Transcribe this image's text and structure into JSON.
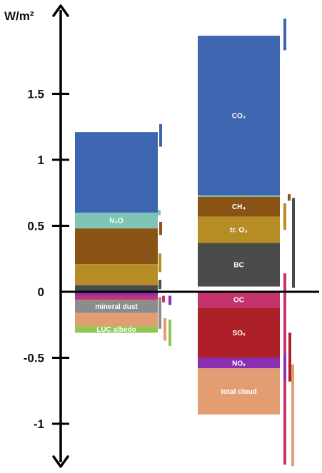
{
  "chart_data": {
    "type": "bar",
    "title": "",
    "ylabel": "W/m²",
    "xlabel": "",
    "ylim": [
      -1.3,
      2.05
    ],
    "y_ticks": [
      {
        "value": 1.5,
        "label": "1.5"
      },
      {
        "value": 1,
        "label": "1"
      },
      {
        "value": 0.5,
        "label": "0.5"
      },
      {
        "value": 0,
        "label": "0"
      },
      {
        "value": -0.5,
        "label": "-0.5"
      },
      {
        "value": -1,
        "label": "-1"
      }
    ],
    "grid": false,
    "legend": "none",
    "stacks": [
      {
        "segments": [
          {
            "label": "",
            "from": 0.6,
            "to": 1.21,
            "color": "#3e66b0"
          },
          {
            "label": "N₂O",
            "from": 0.48,
            "to": 0.6,
            "color": "#7fc4b4"
          },
          {
            "label": "",
            "from": 0.21,
            "to": 0.48,
            "color": "#8a5416"
          },
          {
            "label": "",
            "from": 0.05,
            "to": 0.21,
            "color": "#b58d24"
          },
          {
            "label": "",
            "from": 0.0,
            "to": 0.05,
            "color": "#4b4b4b"
          },
          {
            "label": "",
            "from": -0.03,
            "to": 0.0,
            "color": "#8a2fb4"
          },
          {
            "label": "",
            "from": -0.06,
            "to": -0.03,
            "color": "#c5336e"
          },
          {
            "label": "mineral dust",
            "from": -0.16,
            "to": -0.06,
            "color": "#8c8c8c"
          },
          {
            "label": "",
            "from": -0.26,
            "to": -0.16,
            "color": "#e29e72"
          },
          {
            "label": "LUC albedo",
            "from": -0.31,
            "to": -0.26,
            "color": "#94c451"
          }
        ],
        "ranges": [
          {
            "low": 1.1,
            "high": 1.27,
            "color": "#3e66b0"
          },
          {
            "low": 0.58,
            "high": 0.62,
            "color": "#7fc4b4"
          },
          {
            "low": 0.43,
            "high": 0.53,
            "color": "#8a5416"
          },
          {
            "low": 0.15,
            "high": 0.29,
            "color": "#b58d24"
          },
          {
            "low": 0.02,
            "high": 0.09,
            "color": "#4b4b4b"
          },
          {
            "low": -0.08,
            "high": -0.03,
            "color": "#c5336e"
          },
          {
            "low": -0.1,
            "high": -0.03,
            "color": "#8a2fb4"
          },
          {
            "low": -0.28,
            "high": -0.04,
            "color": "#8c8c8c"
          },
          {
            "low": -0.37,
            "high": -0.2,
            "color": "#e29e72"
          },
          {
            "low": -0.41,
            "high": -0.21,
            "color": "#94c451"
          }
        ]
      },
      {
        "segments": [
          {
            "label": "CO₂",
            "from": 0.73,
            "to": 1.94,
            "color": "#3e66b0"
          },
          {
            "label": "",
            "from": 0.72,
            "to": 0.73,
            "color": "#7fc4b4"
          },
          {
            "label": "CH₄",
            "from": 0.57,
            "to": 0.72,
            "color": "#8a5416"
          },
          {
            "label": "tr. O₃",
            "from": 0.37,
            "to": 0.57,
            "color": "#b58d24"
          },
          {
            "label": "BC",
            "from": 0.04,
            "to": 0.37,
            "color": "#4b4b4b"
          },
          {
            "label": "OC",
            "from": -0.12,
            "to": 0.0,
            "color": "#c5336e"
          },
          {
            "label": "SOₓ",
            "from": -0.5,
            "to": -0.12,
            "color": "#ad1f29"
          },
          {
            "label": "NOₓ",
            "from": -0.58,
            "to": -0.5,
            "color": "#8a2fb4"
          },
          {
            "label": "total cloud",
            "from": -0.93,
            "to": -0.58,
            "color": "#e29e72"
          }
        ],
        "ranges": [
          {
            "low": 1.83,
            "high": 2.07,
            "color": "#3e66b0"
          },
          {
            "low": 0.69,
            "high": 0.74,
            "color": "#8a5416"
          },
          {
            "low": 0.47,
            "high": 0.67,
            "color": "#b58d24"
          },
          {
            "low": 0.03,
            "high": 0.71,
            "color": "#4b4b4b"
          },
          {
            "low": -1.31,
            "high": 0.14,
            "color": "#c5336e"
          },
          {
            "low": -0.68,
            "high": -0.31,
            "color": "#ad1f29"
          },
          {
            "low": -0.67,
            "high": -0.48,
            "color": "#8a2fb4"
          },
          {
            "low": -1.32,
            "high": -0.55,
            "color": "#e29e72"
          }
        ]
      }
    ]
  }
}
